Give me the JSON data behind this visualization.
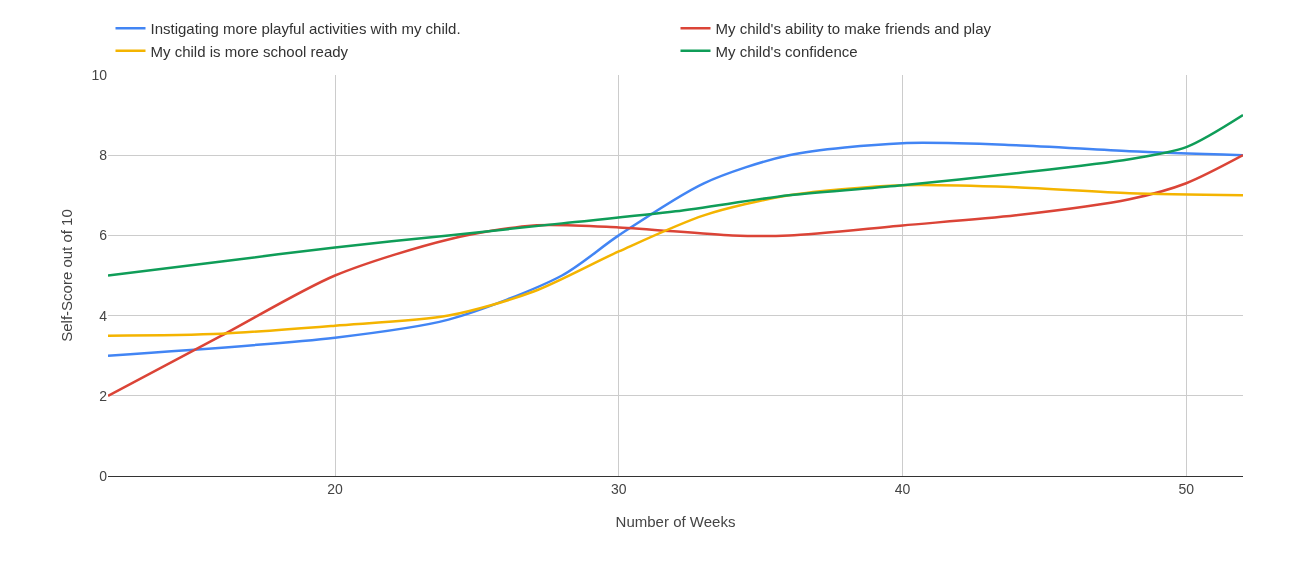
{
  "chart_data": {
    "type": "line",
    "xlabel": "Number of Weeks",
    "ylabel": "Self-Score out of 10",
    "xlim": [
      12,
      52
    ],
    "xticks": [
      20,
      30,
      40,
      50
    ],
    "ylim": [
      0,
      10
    ],
    "yticks": [
      0,
      2,
      4,
      6,
      8,
      10
    ],
    "grid": true,
    "legend": "top",
    "marker": "none",
    "line_style": "solid",
    "series": [
      {
        "name": "Instigating more playful activities with my child.",
        "color": "#4285f4",
        "x": [
          12,
          20,
          24,
          28,
          30,
          33,
          36,
          40,
          44,
          48,
          52
        ],
        "values": [
          3,
          3.45,
          3.9,
          5,
          6,
          7.3,
          8,
          8.3,
          8.25,
          8.1,
          8
        ]
      },
      {
        "name": "My child's ability to make friends and play",
        "color": "#db4437",
        "x": [
          12,
          16,
          20,
          24,
          27,
          30,
          34,
          36,
          40,
          44,
          48,
          50,
          52
        ],
        "values": [
          2,
          3.5,
          5,
          5.9,
          6.25,
          6.2,
          6,
          6,
          6.25,
          6.5,
          6.9,
          7.3,
          8
        ]
      },
      {
        "name": "My child is more school ready",
        "color": "#f4b400",
        "x": [
          12,
          16,
          20,
          24,
          27,
          30,
          33,
          36,
          40,
          44,
          48,
          52
        ],
        "values": [
          3.5,
          3.55,
          3.75,
          4,
          4.6,
          5.6,
          6.5,
          7,
          7.25,
          7.2,
          7.05,
          7
        ]
      },
      {
        "name": "My child's confidence",
        "color": "#0f9d58",
        "x": [
          12,
          16,
          20,
          24,
          28,
          32,
          36,
          40,
          44,
          48,
          50,
          52
        ],
        "values": [
          5,
          5.35,
          5.7,
          6,
          6.3,
          6.6,
          7,
          7.25,
          7.55,
          7.9,
          8.2,
          9
        ]
      }
    ]
  }
}
